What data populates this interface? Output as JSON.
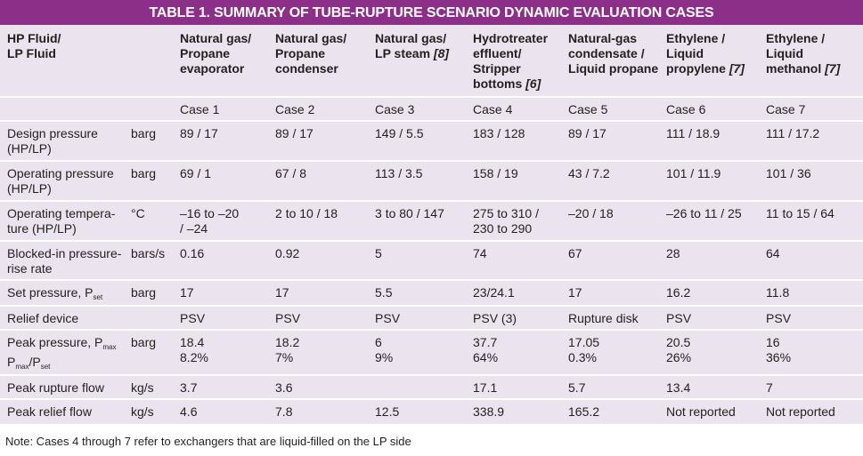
{
  "title": "TABLE 1. SUMMARY OF TUBE-RUPTURE SCENARIO DYNAMIC EVALUATION CASES",
  "table": {
    "corner": [
      "HP Fluid/",
      "LP Fluid"
    ],
    "headers": [
      [
        "Natural gas/",
        "Propane",
        "evaporator"
      ],
      [
        "Natural gas/",
        "Propane",
        "condenser"
      ],
      [
        "Natural gas/",
        [
          "LP steam ",
          {
            "i": "[8]"
          }
        ]
      ],
      [
        "Hydrotreater",
        "effluent/",
        "Stripper",
        [
          "bottoms ",
          {
            "i": "[6]"
          }
        ]
      ],
      [
        "Natural-gas",
        "condensate /",
        "Liquid propane"
      ],
      [
        "Ethylene /",
        "Liquid",
        [
          "propylene ",
          {
            "i": "[7]"
          }
        ]
      ],
      [
        "Ethylene /",
        "Liquid",
        [
          "methanol ",
          {
            "i": "[7]"
          }
        ]
      ]
    ],
    "cases": [
      "Case 1",
      "Case 2",
      "Case 3",
      "Case 4",
      "Case 5",
      "Case 6",
      "Case 7"
    ],
    "rows": [
      {
        "label": [
          "Design pressure",
          "(HP/LP)"
        ],
        "unit": "barg",
        "cells": [
          [
            "89 / 17"
          ],
          [
            "89 / 17"
          ],
          [
            "149 / 5.5"
          ],
          [
            "183 / 128"
          ],
          [
            "89 / 17"
          ],
          [
            "111 / 18.9"
          ],
          [
            "111 / 17.2"
          ]
        ]
      },
      {
        "label": [
          "Operating pressure",
          "(HP/LP)"
        ],
        "unit": "barg",
        "cells": [
          [
            "69  / 1"
          ],
          [
            "67 / 8"
          ],
          [
            "113 / 3.5"
          ],
          [
            "158 / 19"
          ],
          [
            "43 / 7.2"
          ],
          [
            "101 / 11.9"
          ],
          [
            "101 / 36"
          ]
        ]
      },
      {
        "label": [
          "Operating tempera-",
          "ture (HP/LP)"
        ],
        "unit": "°C",
        "cells": [
          [
            "–16 to –20",
            "/ –24"
          ],
          [
            "2 to 10 / 18"
          ],
          [
            "3 to 80 / 147"
          ],
          [
            "275 to 310 /",
            "230 to 290"
          ],
          [
            "–20 / 18"
          ],
          [
            "–26 to 11 / 25"
          ],
          [
            "11 to 15 / 64"
          ]
        ]
      },
      {
        "label": [
          "Blocked-in pressure-",
          "rise rate"
        ],
        "unit": "bars/s",
        "cells": [
          [
            "0.16"
          ],
          [
            "0.92"
          ],
          [
            "5"
          ],
          [
            "74"
          ],
          [
            "67"
          ],
          [
            "28"
          ],
          [
            "64"
          ]
        ]
      },
      {
        "label": [
          [
            "Set pressure, P",
            {
              "sub": "set"
            }
          ]
        ],
        "unit": "barg",
        "cells": [
          [
            "17"
          ],
          [
            "17"
          ],
          [
            "5.5"
          ],
          [
            "23/24.1"
          ],
          [
            "17"
          ],
          [
            "16.2"
          ],
          [
            "11.8"
          ]
        ]
      },
      {
        "label": [
          "Relief device"
        ],
        "cells": [
          [
            "PSV"
          ],
          [
            "PSV"
          ],
          [
            "PSV"
          ],
          [
            "PSV (3)"
          ],
          [
            "Rupture disk"
          ],
          [
            "PSV"
          ],
          [
            "PSV"
          ]
        ]
      },
      {
        "label": [
          [
            "Peak pressure, P",
            {
              "sub": "max"
            }
          ],
          [
            "P",
            {
              "sub": "max"
            },
            "/P",
            {
              "sub": "set"
            }
          ]
        ],
        "unit": "barg",
        "cells": [
          [
            "18.4",
            "8.2%"
          ],
          [
            "18.2",
            "7%"
          ],
          [
            "6",
            "9%"
          ],
          [
            "37.7",
            "64%"
          ],
          [
            "17.05",
            "0.3%"
          ],
          [
            "20.5",
            "26%"
          ],
          [
            "16",
            "36%"
          ]
        ]
      },
      {
        "label": [
          "Peak rupture flow"
        ],
        "unit": "kg/s",
        "cells": [
          [
            "3.7"
          ],
          [
            "3.6"
          ],
          null,
          [
            "17.1"
          ],
          [
            "5.7"
          ],
          [
            "13.4"
          ],
          [
            "7"
          ]
        ]
      },
      {
        "label": [
          "Peak relief flow"
        ],
        "unit": "kg/s",
        "cells": [
          [
            "4.6"
          ],
          [
            "7.8"
          ],
          [
            "12.5"
          ],
          [
            "338.9"
          ],
          [
            "165.2"
          ],
          [
            "Not reported"
          ],
          [
            "Not reported"
          ]
        ]
      }
    ]
  },
  "note": "Note: Cases 4 through 7 refer to exchangers that are liquid-filled on the LP side"
}
